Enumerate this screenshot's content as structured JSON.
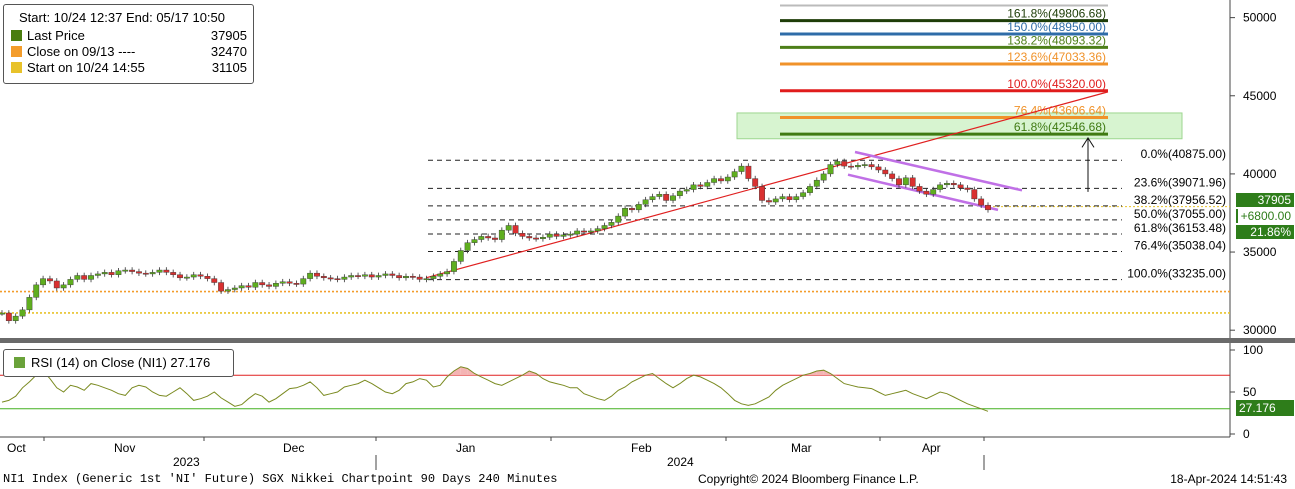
{
  "legend": {
    "header": "Start: 10/24 12:37 End: 05/17 10:50",
    "items": [
      {
        "label": "Last Price",
        "value": "37905",
        "color": "#4a7d0f"
      },
      {
        "label": "Close on 09/13 ----",
        "value": "32470",
        "color": "#f39c2b"
      },
      {
        "label": "Start on 10/24 14:55",
        "value": "31105",
        "color": "#e8c22a"
      }
    ]
  },
  "rsi_legend": {
    "label": "RSI (14)   on Close (NI1) 27.176",
    "color": "#6aa23a"
  },
  "price_tag": {
    "last": "37905",
    "change": "+6800.00",
    "pct": "21.86%"
  },
  "rsi_tag": "27.176",
  "footer": {
    "left": "NI1 Index (Generic 1st 'NI' Future) SGX Nikkei Chartpoint 90 Days 240 Minutes",
    "center": "Copyright© 2024 Bloomberg Finance L.P.",
    "right": "18-Apr-2024 14:51:43"
  },
  "chart_data": [
    {
      "type": "line",
      "subtype": "candlestick",
      "title": "",
      "ylim": [
        29500,
        51000
      ],
      "yticks": [
        30000,
        35000,
        40000,
        45000,
        50000
      ],
      "x_axis": {
        "months": [
          "Oct",
          "Nov",
          "Dec",
          "Jan",
          "Feb",
          "Mar",
          "Apr"
        ],
        "years": [
          "2023",
          "2024"
        ]
      },
      "series": [
        {
          "values": [
            31100,
            30600,
            30900,
            31300,
            32100,
            32900,
            33300,
            33150,
            32700,
            32900,
            33250,
            33500,
            33250,
            33500,
            33600,
            33700,
            33550,
            33800,
            33850,
            33750,
            33650,
            33600,
            33700,
            33850,
            33700,
            33550,
            33350,
            33400,
            33550,
            33450,
            33300,
            33050,
            32500,
            32600,
            32700,
            32850,
            32750,
            33050,
            32900,
            32800,
            33000,
            33100,
            33000,
            32950,
            33300,
            33650,
            33450,
            33350,
            33300,
            33250,
            33400,
            33500,
            33450,
            33550,
            33400,
            33500,
            33600,
            33500,
            33350,
            33450,
            33400,
            33250,
            33300,
            33450,
            33600,
            33750,
            34400,
            35100,
            35600,
            35800,
            36000,
            35900,
            35800,
            36400,
            36700,
            36200,
            36000,
            35900,
            35850,
            35950,
            36150,
            36000,
            36100,
            36150,
            36350,
            36300,
            36350,
            36500,
            36700,
            36900,
            37300,
            37800,
            37700,
            38050,
            38350,
            38550,
            38700,
            38300,
            38600,
            38900,
            39000,
            39300,
            39200,
            39450,
            39700,
            39550,
            39800,
            40150,
            40500,
            39700,
            39200,
            38300,
            38200,
            38400,
            38550,
            38350,
            38550,
            38800,
            39200,
            39600,
            40000,
            40600,
            40800,
            40500,
            40450,
            40550,
            40600,
            40450,
            40250,
            40000,
            39700,
            39300,
            39750,
            39200,
            38900,
            38700,
            39000,
            39300,
            39400,
            39300,
            39100,
            39000,
            38400,
            38000,
            37700
          ]
        }
      ],
      "fibonacci_right": [
        {
          "label": "0.0%(40875.00)",
          "value": 40875
        },
        {
          "label": "23.6%(39071.96)",
          "value": 39071.96
        },
        {
          "label": "38.2%(37956.52)",
          "value": 37956.52
        },
        {
          "label": "50.0%(37055.00)",
          "value": 37055
        },
        {
          "label": "61.8%(36153.48)",
          "value": 36153.48
        },
        {
          "label": "76.4%(35038.04)",
          "value": 35038.04
        },
        {
          "label": "100.0%(33235.00)",
          "value": 33235
        }
      ],
      "fibonacci_top": [
        {
          "label": "161.8%(49806.68)",
          "value": 49806.68,
          "color": "#1e3d08"
        },
        {
          "label": "150.0%(48950.00)",
          "value": 48950,
          "color": "#2e6ca8"
        },
        {
          "label": "138.2%(48093.32)",
          "value": 48093.32,
          "color": "#4d7f18"
        },
        {
          "label": "123.6%(47033.36)",
          "value": 47033.36,
          "color": "#f0922a"
        },
        {
          "label": "100.0%(45320.00)",
          "value": 45320,
          "color": "#e01c1c"
        },
        {
          "label": "76.4%(43606.64)",
          "value": 43606.64,
          "color": "#f0922a"
        },
        {
          "label": "61.8%(42546.68)",
          "value": 42546.68,
          "color": "#3f7a12"
        }
      ],
      "reference_lines": [
        {
          "name": "Close on 09/13",
          "value": 32470,
          "color": "#f39c2b"
        },
        {
          "name": "Start on 10/24 14:55",
          "value": 31105,
          "color": "#e8c22a"
        }
      ]
    },
    {
      "type": "line",
      "title": "RSI (14)",
      "ylim": [
        0,
        100
      ],
      "yticks": [
        0,
        50,
        100
      ],
      "levels": [
        70,
        30
      ],
      "series": [
        {
          "name": "RSI (14)",
          "values": [
            38,
            40,
            45,
            55,
            62,
            70,
            75,
            66,
            55,
            50,
            58,
            56,
            52,
            60,
            58,
            55,
            52,
            48,
            46,
            55,
            58,
            56,
            50,
            46,
            45,
            50,
            55,
            48,
            40,
            42,
            45,
            50,
            43,
            38,
            33,
            35,
            42,
            48,
            45,
            38,
            42,
            48,
            54,
            55,
            58,
            62,
            55,
            46,
            48,
            50,
            56,
            58,
            60,
            64,
            60,
            55,
            50,
            48,
            52,
            60,
            62,
            66,
            64,
            56,
            58,
            68,
            75,
            80,
            78,
            72,
            68,
            64,
            60,
            58,
            62,
            66,
            70,
            75,
            72,
            66,
            62,
            60,
            58,
            55,
            55,
            48,
            45,
            42,
            40,
            45,
            52,
            56,
            62,
            66,
            70,
            72,
            66,
            60,
            55,
            60,
            66,
            70,
            68,
            64,
            60,
            55,
            48,
            40,
            36,
            34,
            36,
            40,
            44,
            52,
            58,
            62,
            66,
            70,
            72,
            75,
            76,
            72,
            66,
            60,
            58,
            56,
            55,
            54,
            50,
            46,
            48,
            50,
            52,
            48,
            45,
            42,
            46,
            50,
            48,
            44,
            40,
            36,
            33,
            30,
            27
          ]
        }
      ]
    }
  ]
}
